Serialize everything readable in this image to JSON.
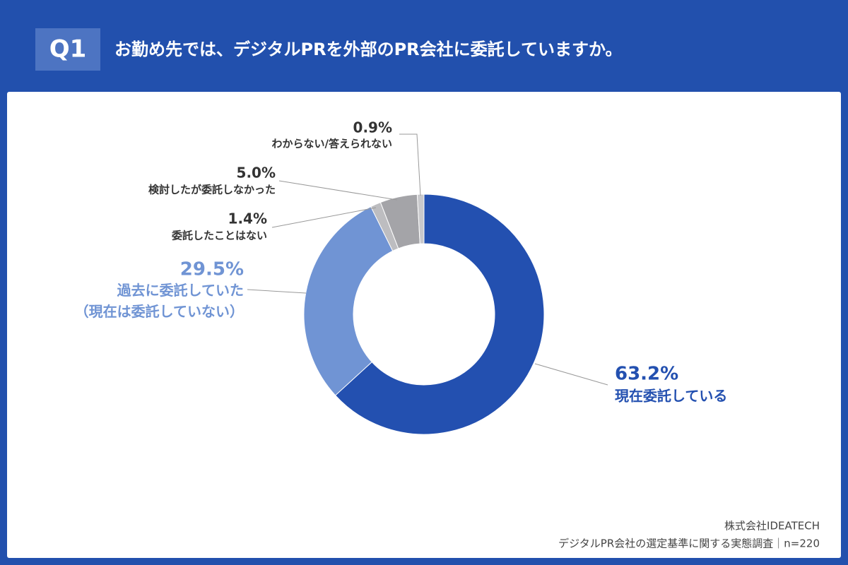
{
  "header": {
    "badge": "Q1",
    "title": "お勤め先では、デジタルPRを外部のPR会社に委託していますか。"
  },
  "chart_data": {
    "type": "donut",
    "categories": [
      "現在委託している",
      "過去に委託していた（現在は委託していない）",
      "委託したことはない",
      "検討したが委託しなかった",
      "わからない/答えられない"
    ],
    "values": [
      63.2,
      29.5,
      1.4,
      5.0,
      0.9
    ],
    "value_labels": [
      "63.2%",
      "29.5%",
      "1.4%",
      "5.0%",
      "0.9%"
    ],
    "colors": [
      "#2350b0",
      "#7094d4",
      "#bdbdc0",
      "#a4a4a8",
      "#c9c9cc"
    ]
  },
  "footer": {
    "source": "株式会社IDEATECH",
    "survey": "デジタルPR会社の選定基準に関する実態調査｜n=220"
  }
}
